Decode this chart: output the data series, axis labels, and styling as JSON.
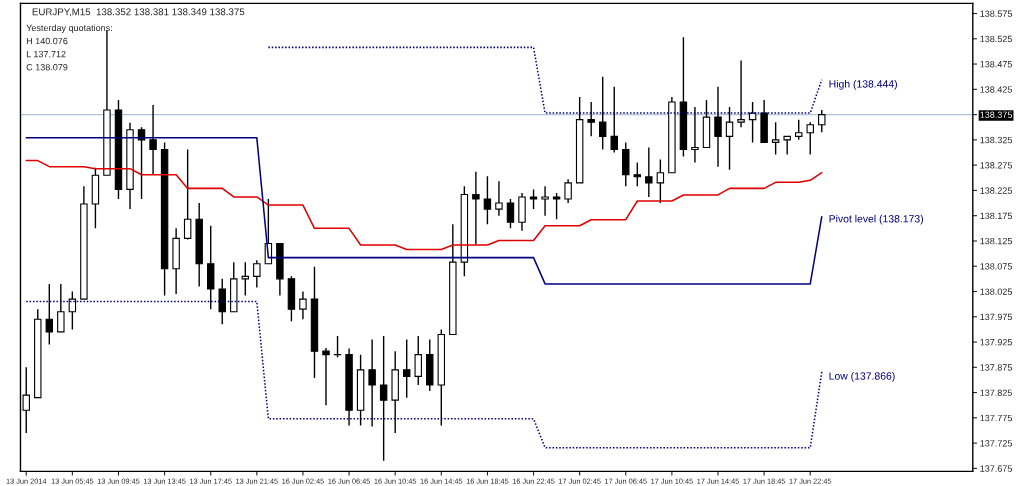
{
  "chart_data": {
    "type": "candlestick",
    "title": "EURJPY,M15  138.352 138.381 138.349 138.375",
    "categories": [
      "13 Jun 2014",
      null,
      null,
      null,
      "13 Jun 05:45",
      null,
      null,
      null,
      "13 Jun 09:45",
      null,
      null,
      null,
      "13 Jun 13:45",
      null,
      null,
      null,
      "13 Jun 17:45",
      null,
      null,
      null,
      "13 Jun 21:45",
      null,
      null,
      null,
      "16 Jun 02:45",
      null,
      null,
      null,
      "16 Jun 06:45",
      null,
      null,
      null,
      "16 Jun 10:45",
      null,
      null,
      null,
      "16 Jun 14:45",
      null,
      null,
      null,
      "16 Jun 18:45",
      null,
      null,
      null,
      "16 Jun 22:45",
      null,
      null,
      null,
      "17 Jun 02:45",
      null,
      null,
      null,
      "17 Jun 06:45",
      null,
      null,
      null,
      "17 Jun 10:45",
      null,
      null,
      null,
      "17 Jun 14:45",
      null,
      null,
      null,
      "17 Jun 18:45",
      null,
      null,
      null,
      "17 Jun 22:45",
      null
    ],
    "ohlc": [
      [
        137.79,
        137.875,
        137.745,
        137.82
      ],
      [
        137.815,
        137.99,
        137.815,
        137.97
      ],
      [
        137.97,
        138.04,
        137.92,
        137.945
      ],
      [
        137.945,
        138.04,
        137.945,
        137.985
      ],
      [
        137.985,
        138.025,
        137.95,
        138.01
      ],
      [
        138.01,
        138.233,
        138.01,
        138.198
      ],
      [
        138.198,
        138.27,
        138.15,
        138.255
      ],
      [
        138.255,
        138.542,
        138.255,
        138.384
      ],
      [
        138.384,
        138.404,
        138.208,
        138.227
      ],
      [
        138.227,
        138.359,
        138.188,
        138.345
      ],
      [
        138.345,
        138.35,
        138.208,
        138.325
      ],
      [
        138.325,
        138.394,
        138.256,
        138.306
      ],
      [
        138.306,
        138.32,
        138.017,
        138.07
      ],
      [
        138.07,
        138.15,
        138.02,
        138.13
      ],
      [
        138.13,
        138.306,
        138.128,
        138.168
      ],
      [
        138.168,
        138.2,
        138.035,
        138.08
      ],
      [
        138.08,
        138.155,
        137.99,
        138.03
      ],
      [
        138.03,
        138.05,
        137.96,
        137.985
      ],
      [
        137.985,
        138.083,
        137.985,
        138.05
      ],
      [
        138.05,
        138.083,
        138.017,
        138.055
      ],
      [
        138.055,
        138.087,
        138.033,
        138.08
      ],
      [
        138.08,
        138.208,
        138.08,
        138.12
      ],
      [
        138.12,
        138.12,
        138.017,
        138.05
      ],
      [
        138.05,
        138.055,
        137.966,
        137.99
      ],
      [
        137.99,
        138.025,
        137.97,
        138.01
      ],
      [
        138.01,
        138.074,
        137.854,
        137.907
      ],
      [
        137.907,
        137.913,
        137.8,
        137.9
      ],
      [
        137.9,
        137.937,
        137.895,
        137.9
      ],
      [
        137.9,
        137.912,
        137.76,
        137.79
      ],
      [
        137.79,
        137.9,
        137.76,
        137.87
      ],
      [
        137.87,
        137.93,
        137.758,
        137.84
      ],
      [
        137.84,
        137.937,
        137.69,
        137.81
      ],
      [
        137.81,
        137.907,
        137.745,
        137.87
      ],
      [
        137.87,
        137.93,
        137.815,
        137.857
      ],
      [
        137.857,
        137.937,
        137.84,
        137.9
      ],
      [
        137.9,
        137.93,
        137.828,
        137.84
      ],
      [
        137.84,
        137.95,
        137.76,
        137.94
      ],
      [
        137.94,
        138.158,
        137.94,
        138.083
      ],
      [
        138.083,
        138.233,
        138.055,
        138.217
      ],
      [
        138.217,
        138.262,
        138.118,
        138.208
      ],
      [
        138.208,
        138.253,
        138.158,
        138.188
      ],
      [
        138.188,
        138.243,
        138.175,
        138.2
      ],
      [
        138.2,
        138.208,
        138.15,
        138.162
      ],
      [
        138.162,
        138.22,
        138.145,
        138.212
      ],
      [
        138.212,
        138.227,
        138.188,
        138.208
      ],
      [
        138.208,
        138.233,
        138.175,
        138.212
      ],
      [
        138.212,
        138.22,
        138.168,
        138.208
      ],
      [
        138.208,
        138.247,
        138.2,
        138.24
      ],
      [
        138.24,
        138.41,
        138.24,
        138.365
      ],
      [
        138.365,
        138.4,
        138.332,
        138.36
      ],
      [
        138.36,
        138.45,
        138.306,
        138.332
      ],
      [
        138.332,
        138.43,
        138.3,
        138.306
      ],
      [
        138.306,
        138.32,
        138.233,
        138.256
      ],
      [
        138.256,
        138.28,
        138.233,
        138.252
      ],
      [
        138.252,
        138.31,
        138.212,
        138.24
      ],
      [
        138.24,
        138.286,
        138.2,
        138.26
      ],
      [
        138.26,
        138.41,
        138.26,
        138.4
      ],
      [
        138.4,
        138.528,
        138.292,
        138.306
      ],
      [
        138.306,
        138.39,
        138.28,
        138.31
      ],
      [
        138.31,
        138.404,
        138.31,
        138.37
      ],
      [
        138.37,
        138.43,
        138.272,
        138.332
      ],
      [
        138.332,
        138.39,
        138.266,
        138.36
      ],
      [
        138.36,
        138.482,
        138.35,
        138.365
      ],
      [
        138.365,
        138.4,
        138.32,
        138.378
      ],
      [
        138.378,
        138.404,
        138.32,
        138.32
      ],
      [
        138.32,
        138.36,
        138.296,
        138.325
      ],
      [
        138.325,
        138.332,
        138.296,
        138.332
      ],
      [
        138.332,
        138.365,
        138.325,
        138.339
      ],
      [
        138.339,
        138.36,
        138.296,
        138.355
      ],
      [
        138.355,
        138.384,
        138.34,
        138.375
      ]
    ],
    "series": [
      {
        "type": "line",
        "color": "#e00000",
        "line_style": "solid",
        "values": [
          138.284,
          138.284,
          138.272,
          138.272,
          138.272,
          138.272,
          138.268,
          138.268,
          138.268,
          138.268,
          138.256,
          138.256,
          138.256,
          138.256,
          138.229,
          138.229,
          138.229,
          138.229,
          138.212,
          138.212,
          138.212,
          138.196,
          138.196,
          138.196,
          138.196,
          138.15,
          138.15,
          138.15,
          138.15,
          138.117,
          138.117,
          138.117,
          138.117,
          138.108,
          138.108,
          138.108,
          138.108,
          138.117,
          138.117,
          138.117,
          138.117,
          138.126,
          138.126,
          138.126,
          138.126,
          138.155,
          138.155,
          138.155,
          138.155,
          138.167,
          138.167,
          138.167,
          138.167,
          138.204,
          138.204,
          138.204,
          138.204,
          138.216,
          138.216,
          138.216,
          138.216,
          138.229,
          138.229,
          138.229,
          138.229,
          138.241,
          138.241,
          138.241,
          138.245,
          138.26
        ]
      },
      {
        "type": "line",
        "color": "#000080",
        "line_style": "solid",
        "values": [
          138.329,
          138.329,
          138.329,
          138.329,
          138.329,
          138.329,
          138.329,
          138.329,
          138.329,
          138.329,
          138.329,
          138.329,
          138.329,
          138.329,
          138.329,
          138.329,
          138.329,
          138.329,
          138.329,
          138.329,
          138.329,
          138.092,
          138.092,
          138.092,
          138.092,
          138.092,
          138.092,
          138.092,
          138.092,
          138.092,
          138.092,
          138.092,
          138.092,
          138.092,
          138.092,
          138.092,
          138.092,
          138.092,
          138.092,
          138.092,
          138.092,
          138.092,
          138.092,
          138.092,
          138.092,
          138.04,
          138.04,
          138.04,
          138.04,
          138.04,
          138.04,
          138.04,
          138.04,
          138.04,
          138.04,
          138.04,
          138.04,
          138.04,
          138.04,
          138.04,
          138.04,
          138.04,
          138.04,
          138.04,
          138.04,
          138.04,
          138.04,
          138.04,
          138.04,
          138.173
        ]
      },
      {
        "type": "line",
        "color": "#000080",
        "line_style": "dotted",
        "values": [
          null,
          null,
          null,
          null,
          null,
          null,
          null,
          null,
          null,
          null,
          null,
          null,
          null,
          null,
          null,
          null,
          null,
          null,
          null,
          null,
          null,
          138.508,
          138.508,
          138.508,
          138.508,
          138.508,
          138.508,
          138.508,
          138.508,
          138.508,
          138.508,
          138.508,
          138.508,
          138.508,
          138.508,
          138.508,
          138.508,
          138.508,
          138.508,
          138.508,
          138.508,
          138.508,
          138.508,
          138.508,
          138.508,
          138.378,
          138.378,
          138.378,
          138.378,
          138.378,
          138.378,
          138.378,
          138.378,
          138.378,
          138.378,
          138.378,
          138.378,
          138.378,
          138.378,
          138.378,
          138.378,
          138.378,
          138.378,
          138.378,
          138.378,
          138.378,
          138.378,
          138.378,
          138.378,
          138.444
        ]
      },
      {
        "type": "line",
        "color": "#000080",
        "line_style": "dotted",
        "values": [
          138.005,
          138.005,
          138.005,
          138.005,
          138.005,
          138.005,
          138.005,
          138.005,
          138.005,
          138.005,
          138.005,
          138.005,
          138.005,
          138.005,
          138.005,
          138.005,
          138.005,
          138.005,
          138.005,
          138.005,
          138.005,
          137.773,
          137.773,
          137.773,
          137.773,
          137.773,
          137.773,
          137.773,
          137.773,
          137.773,
          137.773,
          137.773,
          137.773,
          137.773,
          137.773,
          137.773,
          137.773,
          137.773,
          137.773,
          137.773,
          137.773,
          137.773,
          137.773,
          137.773,
          137.773,
          137.716,
          137.716,
          137.716,
          137.716,
          137.716,
          137.716,
          137.716,
          137.716,
          137.716,
          137.716,
          137.716,
          137.716,
          137.716,
          137.716,
          137.716,
          137.716,
          137.716,
          137.716,
          137.716,
          137.716,
          137.716,
          137.716,
          137.716,
          137.716,
          137.866
        ]
      }
    ],
    "ref_lines": [
      {
        "axis": "y",
        "value": 138.375,
        "color": "#b0c4de"
      }
    ],
    "annotations": [
      "Yesterday quotations:",
      "H 140.076",
      "L 137.712",
      "C 138.079",
      "High (138.444)",
      "Pivot level (138.173)",
      "Low (137.866)"
    ],
    "ylim": [
      137.669,
      138.595
    ],
    "yticks": [
      137.675,
      137.725,
      137.775,
      137.825,
      137.875,
      137.925,
      137.975,
      138.025,
      138.075,
      138.125,
      138.175,
      138.225,
      138.275,
      138.325,
      138.375,
      138.425,
      138.475,
      138.525,
      138.575
    ],
    "grid": false,
    "legend": false
  }
}
